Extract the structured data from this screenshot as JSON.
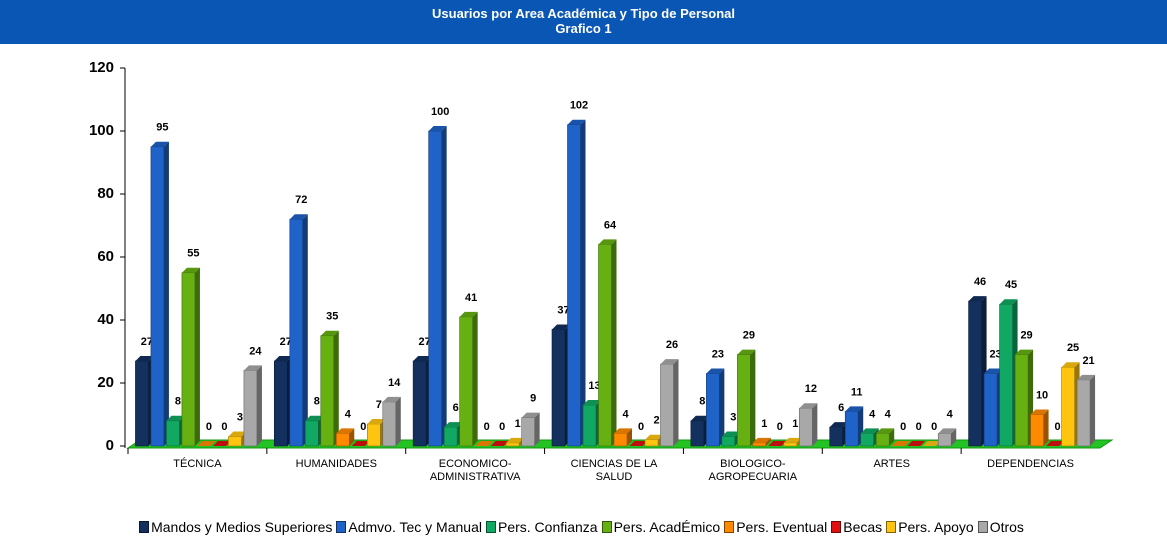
{
  "chart_data": {
    "type": "bar3d",
    "title": "Usuarios por Area Académica y Tipo de Personal",
    "subtitle": "Grafico 1",
    "categories": [
      "TÉCNICA",
      "HUMANIDADES",
      "ECONOMICO-ADMINISTRATIVA",
      "CIENCIAS DE LA SALUD",
      "BIOLOGICO-AGROPECUARIA",
      "ARTES",
      "DEPENDENCIAS"
    ],
    "series": [
      {
        "name": "Mandos y Medios Superiores",
        "color": "#13305e",
        "values": [
          27,
          27,
          27,
          37,
          8,
          6,
          46
        ]
      },
      {
        "name": "Admvo. Tec y Manual",
        "color": "#1f62c8",
        "values": [
          95,
          72,
          100,
          102,
          23,
          11,
          23
        ]
      },
      {
        "name": "Pers. Confianza",
        "color": "#10a862",
        "values": [
          8,
          8,
          6,
          13,
          3,
          4,
          45
        ]
      },
      {
        "name": "Pers. AcadÉmico",
        "color": "#66b012",
        "values": [
          55,
          35,
          41,
          64,
          29,
          4,
          29
        ]
      },
      {
        "name": "Pers. Eventual",
        "color": "#ff8a00",
        "values": [
          0,
          4,
          0,
          4,
          1,
          0,
          10
        ]
      },
      {
        "name": "Becas",
        "color": "#e01010",
        "values": [
          0,
          0,
          0,
          0,
          0,
          0,
          0
        ]
      },
      {
        "name": "Pers. Apoyo",
        "color": "#ffc410",
        "values": [
          3,
          7,
          1,
          2,
          1,
          0,
          25
        ]
      },
      {
        "name": "Otros",
        "color": "#a8a8a8",
        "values": [
          24,
          14,
          9,
          26,
          12,
          4,
          21
        ]
      }
    ],
    "ylim": [
      0,
      120
    ],
    "yticks": [
      0,
      20,
      40,
      60,
      80,
      100,
      120
    ]
  }
}
